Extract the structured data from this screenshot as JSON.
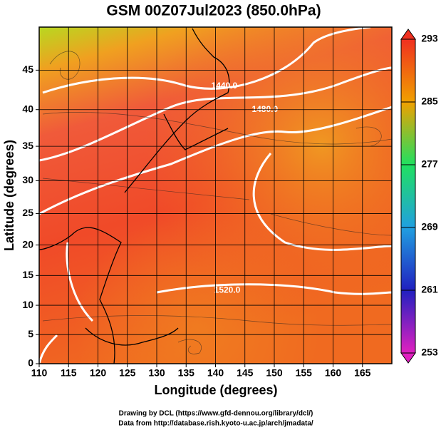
{
  "chart_data": {
    "type": "map",
    "title": "GSM 00Z07Jul2023 (850.0hPa)",
    "x_label": "Longitude (degrees)",
    "y_label": "Latitude  (degrees)",
    "xlim": [
      110,
      170
    ],
    "xticks": [
      110,
      115,
      120,
      125,
      130,
      135,
      140,
      145,
      150,
      155,
      160,
      165
    ],
    "ylim": [
      0,
      50
    ],
    "yticks": [
      0,
      5,
      10,
      15,
      20,
      25,
      30,
      35,
      40,
      45
    ],
    "projection": "mercator",
    "grid": true,
    "colorbar": {
      "lim": [
        253,
        293
      ],
      "ticks": [
        253,
        261,
        269,
        277,
        285,
        293
      ],
      "colors": [
        "#e020c0",
        "#2020c0",
        "#20a0e0",
        "#20e060",
        "#f0a000",
        "#f03020"
      ]
    },
    "annotations": [
      {
        "text": "1440.0",
        "x": 141.5,
        "y": 43
      },
      {
        "text": "1480.0",
        "x": 148.4,
        "y": 40
      },
      {
        "text": "1520.0",
        "x": 142,
        "y": 12.5
      }
    ],
    "credits": [
      "Drawing by DCL (https://www.gfd-dennou.org/library/dcl/)",
      "Data from http://database.rish.kyoto-u.ac.jp/arch/jmadata/"
    ]
  }
}
